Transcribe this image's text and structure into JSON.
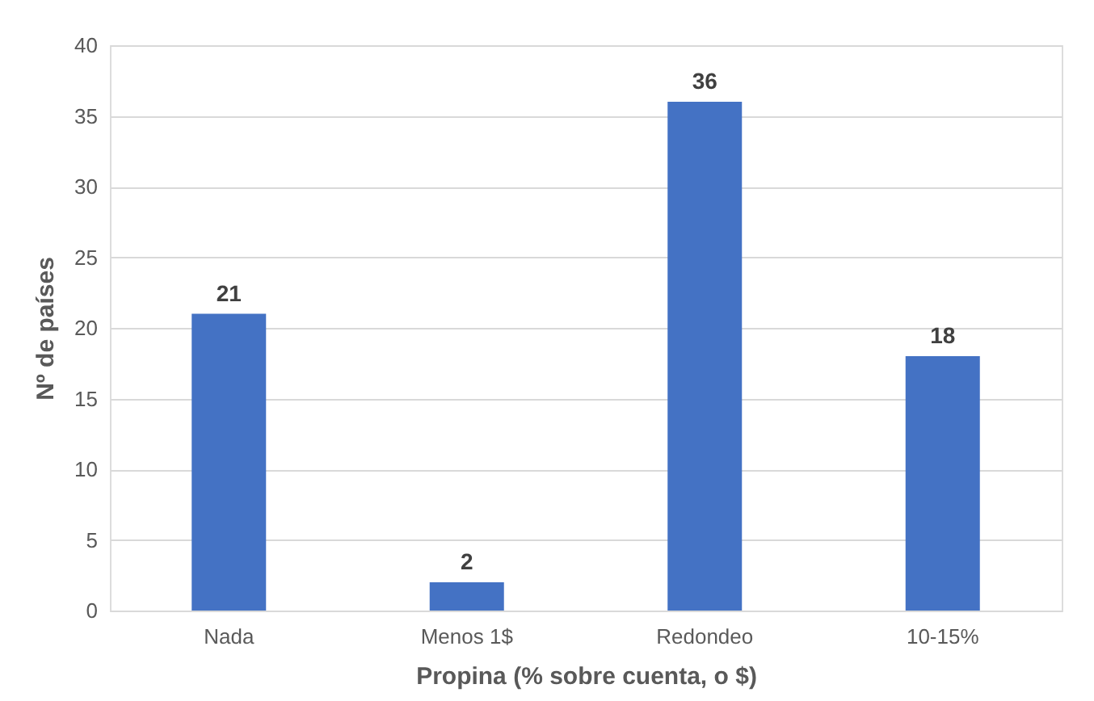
{
  "chart_data": {
    "type": "bar",
    "xlabel": "Propina (% sobre cuenta, o $)",
    "ylabel": "Nº de países",
    "categories": [
      "Nada",
      "Menos 1$",
      "Redondeo",
      "10-15%"
    ],
    "values": [
      21,
      2,
      36,
      18
    ],
    "color": "#4472c4",
    "ylim": [
      0,
      40
    ],
    "yticks": [
      0,
      5,
      10,
      15,
      20,
      25,
      30,
      35,
      40
    ],
    "grid": "y",
    "data_labels": true
  }
}
